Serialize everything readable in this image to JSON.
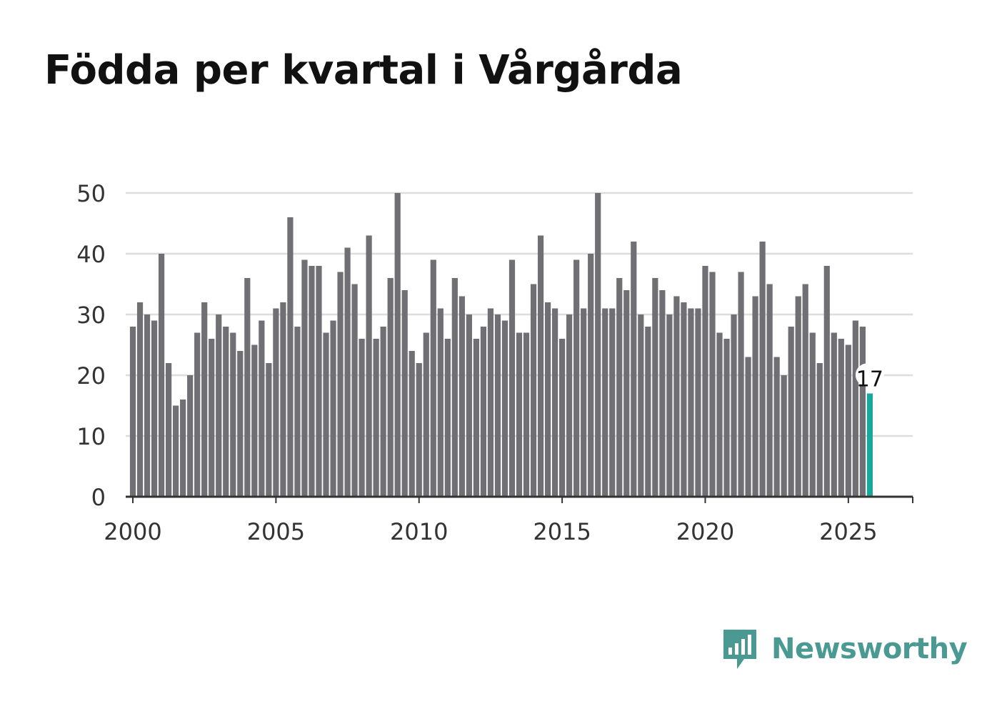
{
  "chart_data": {
    "type": "bar",
    "title": "Födda per kvartal i Vårgårda",
    "xlabel": "",
    "ylabel": "",
    "x_start_year": 2000,
    "x_step": 0.25,
    "xlim": [
      1999.75,
      2027.25
    ],
    "ylim": [
      0,
      50
    ],
    "yticks": [
      "0",
      "10",
      "20",
      "30",
      "40",
      "50"
    ],
    "xticks": [
      "2000",
      "2005",
      "2010",
      "2015",
      "2020",
      "2025"
    ],
    "values": [
      28,
      32,
      30,
      29,
      40,
      22,
      15,
      16,
      20,
      27,
      32,
      26,
      30,
      28,
      27,
      24,
      36,
      25,
      29,
      22,
      31,
      32,
      46,
      28,
      39,
      38,
      38,
      27,
      29,
      37,
      41,
      35,
      26,
      43,
      26,
      28,
      36,
      50,
      34,
      24,
      22,
      27,
      39,
      31,
      26,
      36,
      33,
      30,
      26,
      28,
      31,
      30,
      29,
      39,
      27,
      27,
      35,
      43,
      32,
      31,
      26,
      30,
      39,
      31,
      40,
      50,
      31,
      31,
      36,
      34,
      42,
      30,
      28,
      36,
      34,
      30,
      33,
      32,
      31,
      31,
      38,
      37,
      27,
      26,
      30,
      37,
      23,
      33,
      42,
      35,
      23,
      20,
      28,
      33,
      35,
      27,
      22,
      38,
      27,
      26,
      25,
      29,
      28,
      17
    ],
    "highlight_label": "17",
    "colors": {
      "bar": "#707074",
      "highlight": "#1aa89c",
      "grid": "#dddddd",
      "axis": "#333333"
    }
  },
  "brand": {
    "name": "Newsworthy",
    "color": "#4a9a93",
    "icon": "bar-chart-speech-icon"
  }
}
